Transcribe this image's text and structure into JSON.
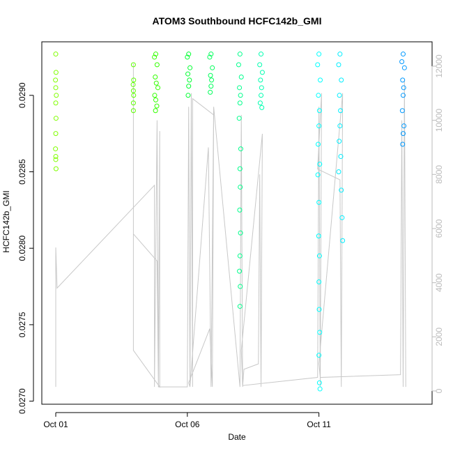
{
  "chart_data": {
    "type": "scatter",
    "title": "ATOM3 Southbound HCFC142b_GMI",
    "x_label": "Date",
    "y_label": "HCFC142b_GMI",
    "xlim": [
      0.47,
      15.3
    ],
    "ylim": [
      0.02698,
      0.02935
    ],
    "y2lim": [
      -490,
      12900
    ],
    "xticks": [
      {
        "value": 1,
        "label": "Oct 01"
      },
      {
        "value": 6,
        "label": "Oct 06"
      },
      {
        "value": 11,
        "label": "Oct 11"
      }
    ],
    "yticks": [
      {
        "value": 0.027,
        "label": "0.0270"
      },
      {
        "value": 0.0275,
        "label": "0.0275"
      },
      {
        "value": 0.028,
        "label": "0.0280"
      },
      {
        "value": 0.0285,
        "label": "0.0285"
      },
      {
        "value": 0.029,
        "label": "0.0290"
      }
    ],
    "y2ticks": [
      0,
      2000,
      4000,
      6000,
      8000,
      10000,
      12000
    ],
    "groups": [
      {
        "color": "#80ff00",
        "x": [
          1.0,
          1.01,
          0.99,
          1.0,
          1.02,
          1.0,
          1.01,
          1.0,
          0.99,
          1.0,
          1.01,
          1.0
        ],
        "values": [
          0.02927,
          0.02915,
          0.0291,
          0.02905,
          0.029,
          0.02895,
          0.02885,
          0.02875,
          0.02865,
          0.02858,
          0.02852,
          0.0286
        ]
      },
      {
        "color": "#5cff00",
        "x": [
          3.95,
          3.96,
          3.94,
          3.95,
          3.96,
          3.95,
          3.95
        ],
        "values": [
          0.0292,
          0.0291,
          0.02907,
          0.02903,
          0.029,
          0.02895,
          0.0289
        ]
      },
      {
        "color": "#33ff00",
        "x": [
          4.8,
          4.75,
          4.85,
          4.78,
          4.82,
          4.88,
          4.76,
          4.8,
          4.84,
          4.79
        ],
        "values": [
          0.02927,
          0.02925,
          0.0292,
          0.02912,
          0.02908,
          0.02905,
          0.029,
          0.02897,
          0.02893,
          0.0289
        ]
      },
      {
        "color": "#00ff30",
        "x": [
          6.05,
          6.0,
          6.1,
          6.02,
          6.08,
          6.05,
          6.03
        ],
        "values": [
          0.02927,
          0.02925,
          0.02918,
          0.02914,
          0.0291,
          0.02906,
          0.029
        ]
      },
      {
        "color": "#00ff5a",
        "x": [
          6.9,
          6.85,
          6.95,
          6.88,
          6.92,
          6.9,
          6.87
        ],
        "values": [
          0.02927,
          0.02925,
          0.02918,
          0.02913,
          0.0291,
          0.02906,
          0.02902
        ]
      },
      {
        "color": "#00ff8c",
        "x": [
          8.0,
          7.95,
          8.05,
          7.98,
          8.02,
          8.0,
          7.97,
          8.03,
          8.0,
          8.01,
          7.99,
          8.02,
          8.0,
          7.98,
          8.01,
          8.0
        ],
        "values": [
          0.02927,
          0.0292,
          0.02912,
          0.02905,
          0.029,
          0.02895,
          0.02885,
          0.02865,
          0.02852,
          0.0284,
          0.02825,
          0.0281,
          0.02795,
          0.02785,
          0.02775,
          0.02762
        ]
      },
      {
        "color": "#00ffb0",
        "x": [
          8.8,
          8.75,
          8.85,
          8.78,
          8.82,
          8.8,
          8.77,
          8.83
        ],
        "values": [
          0.02927,
          0.0292,
          0.02915,
          0.0291,
          0.02905,
          0.029,
          0.02895,
          0.02892
        ]
      },
      {
        "color": "#00ffff",
        "x": [
          11.0,
          10.95,
          11.05,
          10.98,
          11.02,
          11.0,
          10.97,
          11.03,
          10.96,
          11.0,
          10.99,
          11.02,
          11.0,
          11.01,
          11.03,
          11.0,
          11.02,
          11.04
        ],
        "values": [
          0.02927,
          0.0292,
          0.0291,
          0.029,
          0.0289,
          0.0288,
          0.02868,
          0.02855,
          0.02848,
          0.0283,
          0.02808,
          0.02795,
          0.02778,
          0.0276,
          0.02745,
          0.0273,
          0.02712,
          0.02708
        ]
      },
      {
        "color": "#00eeff",
        "x": [
          11.8,
          11.75,
          11.85,
          11.78,
          11.82,
          11.8,
          11.77,
          11.83,
          11.75,
          11.85,
          11.88,
          11.9
        ],
        "values": [
          0.02927,
          0.0292,
          0.0291,
          0.029,
          0.0289,
          0.0288,
          0.0287,
          0.0286,
          0.0285,
          0.02838,
          0.0282,
          0.02805
        ]
      },
      {
        "color": "#0099ff",
        "x": [
          14.2,
          14.15,
          14.25,
          14.18,
          14.22,
          14.2,
          14.17,
          14.23,
          14.2,
          14.18
        ],
        "values": [
          0.02927,
          0.02922,
          0.02918,
          0.0291,
          0.02905,
          0.029,
          0.0289,
          0.0288,
          0.02875,
          0.02868
        ]
      }
    ],
    "line": {
      "axis": "y2",
      "color": "#c8c8c8",
      "x": [
        1.0,
        1.0,
        1.05,
        4.75,
        4.75,
        4.85,
        4.9,
        4.95,
        4.95,
        3.95,
        3.95,
        3.95,
        4.85,
        4.9,
        6.0,
        6.05,
        6.1,
        6.15,
        6.2,
        6.2,
        7.0,
        6.95,
        6.85,
        6.05,
        6.1,
        6.8,
        6.9,
        7.0,
        8.0,
        8.05,
        8.1,
        8.15,
        8.7,
        8.75,
        8.8,
        8.85,
        8.05,
        8.1,
        10.95,
        11.0,
        11.05,
        11.1,
        10.95,
        11.8,
        11.85,
        11.9,
        11.0,
        11.05,
        14.1,
        14.15,
        14.2,
        14.25,
        14.3
      ],
      "values": [
        150,
        5300,
        3800,
        7600,
        150,
        10000,
        150,
        9600,
        150,
        1500,
        12100,
        5800,
        4800,
        150,
        150,
        10500,
        150,
        11000,
        150,
        10800,
        10200,
        150,
        2300,
        300,
        150,
        9000,
        150,
        10500,
        150,
        10200,
        150,
        800,
        1000,
        8000,
        150,
        9500,
        1500,
        200,
        500,
        10500,
        150,
        11000,
        8200,
        7800,
        150,
        11000,
        1000,
        500,
        600,
        10000,
        150,
        11500,
        150
      ]
    }
  }
}
